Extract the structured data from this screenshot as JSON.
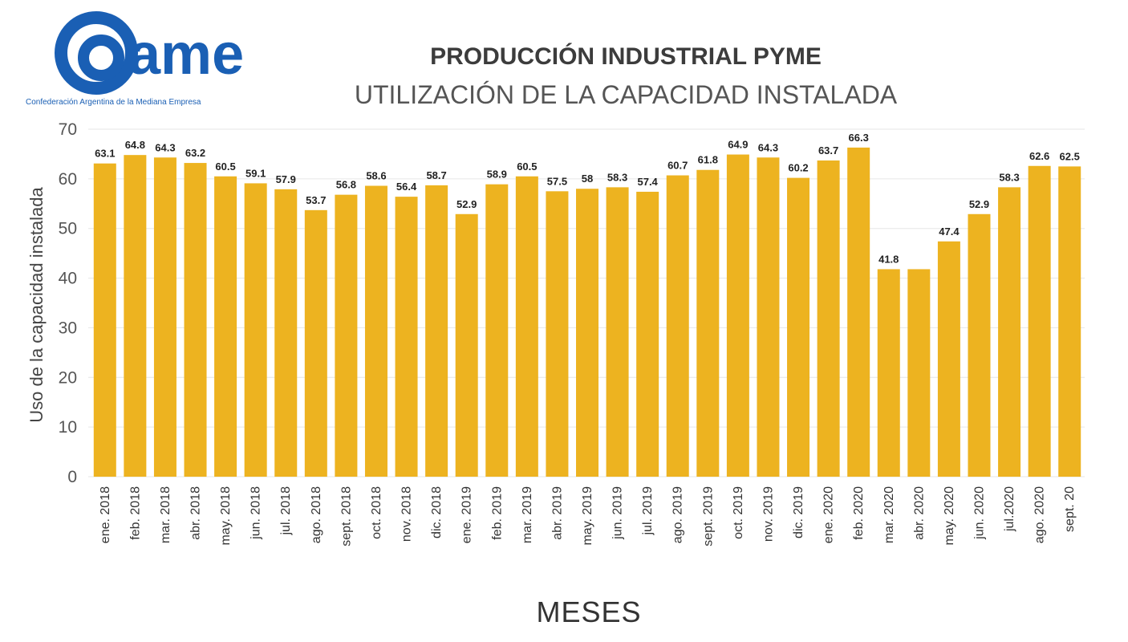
{
  "logo": {
    "text": "came",
    "caption": "Confederación Argentina de la Mediana Empresa"
  },
  "colors": {
    "bar": "#EDB320",
    "grid": "#e6e6e6",
    "brand": "#1a5fb4"
  },
  "chart_data": {
    "type": "bar",
    "title": "PRODUCCIÓN INDUSTRIAL PYME",
    "subtitle": "UTILIZACIÓN DE LA CAPACIDAD INSTALADA",
    "xlabel": "MESES",
    "ylabel": "Uso de la capacidad instalada",
    "ylim": [
      0,
      70
    ],
    "yticks": [
      0,
      10,
      20,
      30,
      40,
      50,
      60,
      70
    ],
    "grid": true,
    "categories": [
      "ene. 2018",
      "feb. 2018",
      "mar. 2018",
      "abr. 2018",
      "may. 2018",
      "jun. 2018",
      "jul. 2018",
      "ago. 2018",
      "sept. 2018",
      "oct. 2018",
      "nov. 2018",
      "dic. 2018",
      "ene. 2019",
      "feb. 2019",
      "mar. 2019",
      "abr. 2019",
      "may. 2019",
      "jun. 2019",
      "jul. 2019",
      "ago. 2019",
      "sept. 2019",
      "oct. 2019",
      "nov. 2019",
      "dic. 2019",
      "ene. 2020",
      "feb. 2020",
      "mar. 2020",
      "abr. 2020",
      "may. 2020",
      "jun. 2020",
      "jul.2020",
      "ago. 2020",
      "sept. 20"
    ],
    "values": [
      63.1,
      64.8,
      64.3,
      63.2,
      60.5,
      59.1,
      57.9,
      53.7,
      56.8,
      58.6,
      56.4,
      58.7,
      52.9,
      58.9,
      60.5,
      57.5,
      58,
      58.3,
      57.4,
      60.7,
      61.8,
      64.9,
      64.3,
      60.2,
      63.7,
      66.3,
      41.8,
      41.8,
      47.4,
      52.9,
      58.3,
      62.6,
      62.5
    ],
    "data_labels": [
      "63.1",
      "64.8",
      "64.3",
      "63.2",
      "60.5",
      "59.1",
      "57.9",
      "53.7",
      "56.8",
      "58.6",
      "56.4",
      "58.7",
      "52.9",
      "58.9",
      "60.5",
      "57.5",
      "58",
      "58.3",
      "57.4",
      "60.7",
      "61.8",
      "64.9",
      "64.3",
      "60.2",
      "63.7",
      "66.3",
      "41.8",
      "",
      "47.4",
      "52.9",
      "58.3",
      "62.6",
      "62.5"
    ]
  }
}
